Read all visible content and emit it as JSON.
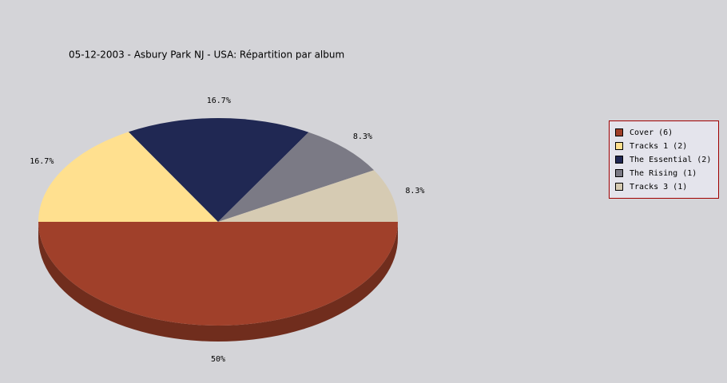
{
  "chart_data": {
    "type": "pie",
    "title": "05-12-2003 - Asbury Park NJ - USA:  Répartition par album",
    "categories": [
      "Cover (6)",
      "Tracks 1 (2)",
      "The Essential (2)",
      "The Rising (1)",
      "Tracks 3 (1)"
    ],
    "values": [
      50,
      16.7,
      16.7,
      8.3,
      8.3
    ],
    "value_labels": [
      "50%",
      "16.7%",
      "16.7%",
      "8.3%",
      "8.3%"
    ],
    "colors": [
      "#a0402a",
      "#ffe08f",
      "#202853",
      "#7b7a85",
      "#d6cbb3"
    ],
    "legend": "right"
  }
}
